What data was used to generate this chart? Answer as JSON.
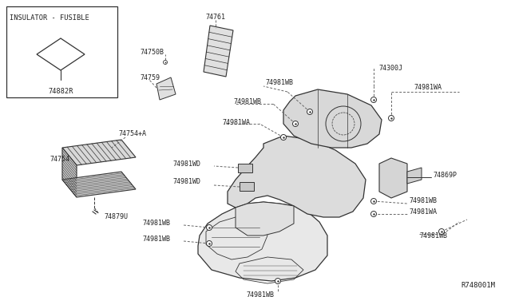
{
  "fig_width": 6.4,
  "fig_height": 3.72,
  "dpi": 100,
  "bg_color": "#ffffff",
  "line_color": "#333333",
  "text_color": "#222222",
  "ref_code": "R748001M",
  "header_text": "INSULATOR - FUSIBLE",
  "part_label": "74882R",
  "fs_label": 6.0,
  "fs_ref": 6.5
}
